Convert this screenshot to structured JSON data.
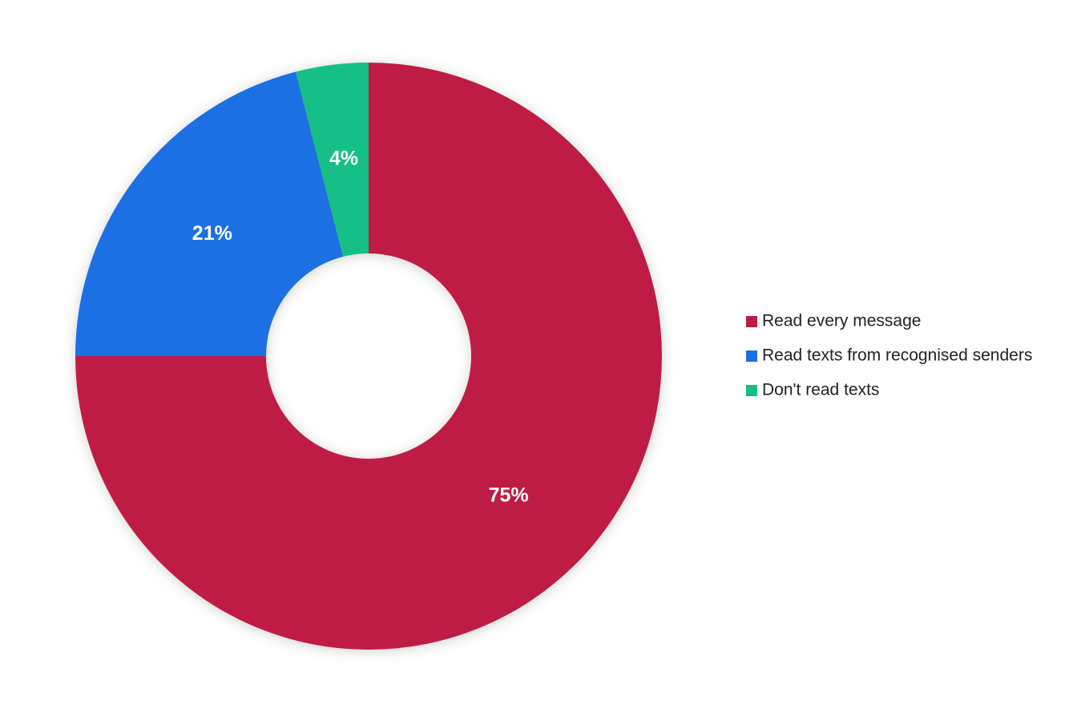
{
  "chart_data": {
    "type": "donut",
    "categories": [
      "Read every message",
      "Read texts from recognised senders",
      "Don't read texts"
    ],
    "values": [
      75,
      21,
      4
    ],
    "value_labels": [
      "75%",
      "21%",
      "4%"
    ],
    "colors": [
      "#be1c44",
      "#1a6fe3",
      "#14bf87"
    ],
    "legend": "right"
  }
}
